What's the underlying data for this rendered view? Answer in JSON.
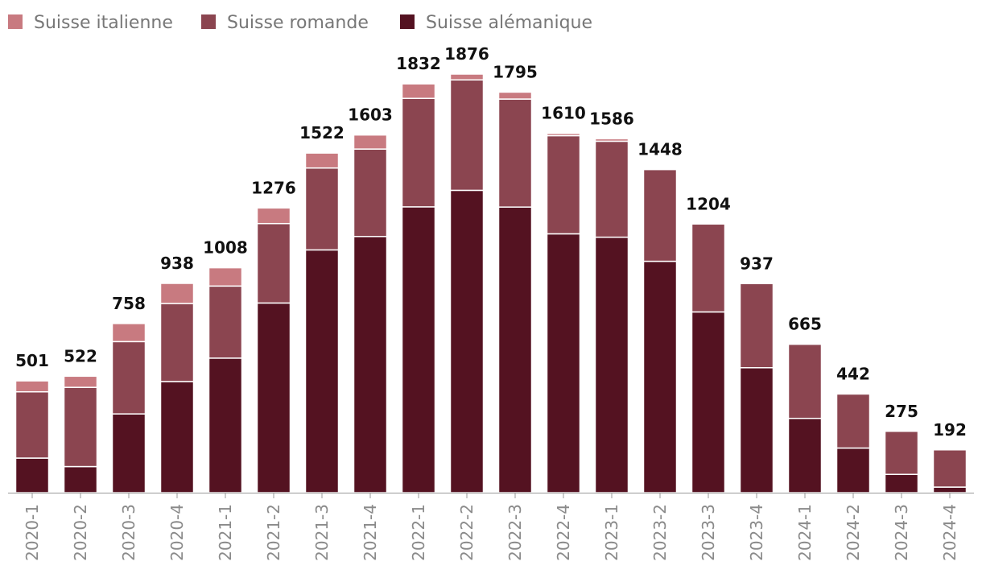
{
  "chart_data": {
    "type": "bar",
    "stacked": true,
    "title": "",
    "xlabel": "",
    "ylabel": "",
    "ylim": [
      0,
      2050
    ],
    "grid": false,
    "legend_position": "top-left",
    "categories": [
      "2020-1",
      "2020-2",
      "2020-3",
      "2020-4",
      "2021-1",
      "2021-2",
      "2021-3",
      "2021-4",
      "2022-1",
      "2022-2",
      "2022-3",
      "2022-4",
      "2023-1",
      "2023-2",
      "2023-3",
      "2023-4",
      "2024-1",
      "2024-2",
      "2024-3",
      "2024-4"
    ],
    "totals": [
      501,
      522,
      758,
      938,
      1008,
      1276,
      1522,
      1603,
      1832,
      1876,
      1795,
      1610,
      1586,
      1448,
      1204,
      937,
      665,
      442,
      275,
      192
    ],
    "series": [
      {
        "name": "Suisse alémanique",
        "color": "#541221",
        "values": [
          155,
          117,
          353,
          498,
          603,
          850,
          1088,
          1148,
          1281,
          1355,
          1280,
          1160,
          1145,
          1037,
          810,
          560,
          333,
          200,
          82,
          25
        ]
      },
      {
        "name": "Suisse romande",
        "color": "#8b4550",
        "values": [
          297,
          355,
          324,
          350,
          323,
          356,
          367,
          392,
          486,
          495,
          484,
          440,
          430,
          411,
          394,
          377,
          332,
          242,
          193,
          167
        ]
      },
      {
        "name": "Suisse italienne",
        "color": "#c87a80",
        "values": [
          49,
          50,
          81,
          90,
          82,
          70,
          67,
          63,
          65,
          26,
          31,
          10,
          11,
          0,
          0,
          0,
          0,
          0,
          0,
          0
        ]
      }
    ],
    "legend_order": [
      "Suisse italienne",
      "Suisse romande",
      "Suisse alémanique"
    ]
  }
}
